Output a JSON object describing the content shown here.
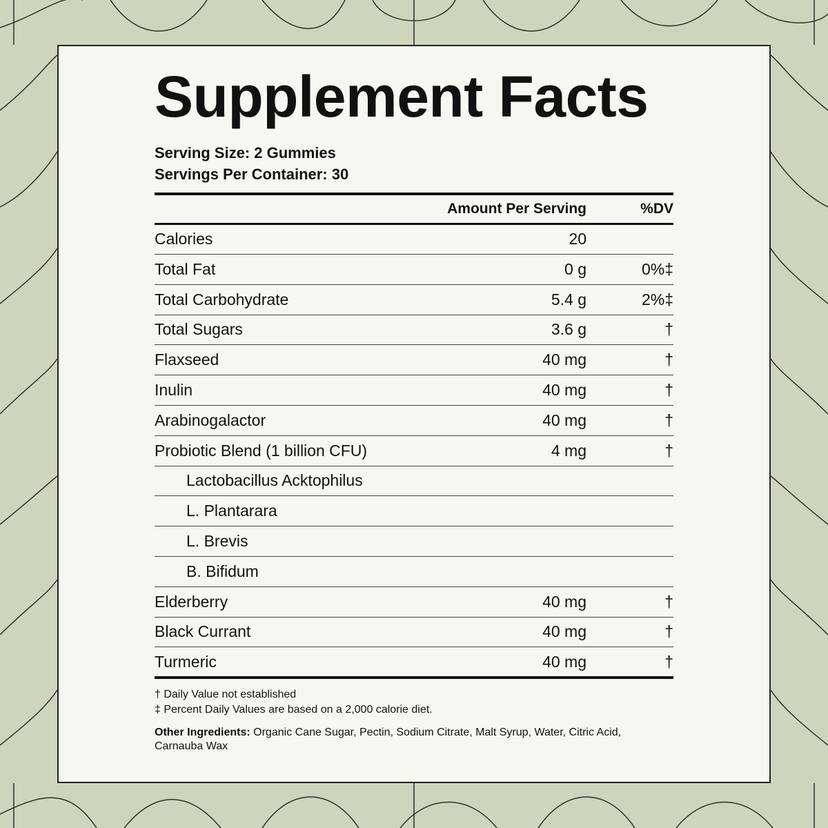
{
  "header": {
    "title": "Supplement Facts",
    "serving_size": "Serving Size: 2 Gummies",
    "servings_per_container": "Servings Per Container: 30"
  },
  "table": {
    "columns": [
      "Amount Per Serving",
      "%DV"
    ],
    "rows": [
      {
        "name": "Calories",
        "amount": "20"
      },
      {
        "name": "Total Fat",
        "amount": "0 g",
        "dv": "0%‡"
      },
      {
        "name": "Total Carbohydrate",
        "amount": "5.4 g",
        "dv": "2%‡"
      },
      {
        "name": "Total Sugars",
        "amount": "3.6 g",
        "dv": "†"
      },
      {
        "name": "Flaxseed",
        "amount": "40 mg",
        "dv": "†"
      },
      {
        "name": "Inulin",
        "amount": "40 mg",
        "dv": "†"
      },
      {
        "name": "Arabinogalactor",
        "amount": "40 mg",
        "dv": "†"
      },
      {
        "name": "Probiotic Blend (1 billion CFU)",
        "amount": "4 mg",
        "dv": "†",
        "components": [
          "Lactobacillus Acktophilus",
          "L. Plantarara",
          "L. Brevis",
          "B. Bifidum"
        ]
      },
      {
        "name": "Elderberry",
        "amount": "40 mg",
        "dv": "†"
      },
      {
        "name": "Black Currant",
        "amount": "40 mg",
        "dv": "†"
      },
      {
        "name": "Turmeric",
        "amount": "40 mg",
        "dv": "†"
      }
    ]
  },
  "footnotes": [
    "† Daily Value not established",
    "‡ Percent Daily Values are based on a 2,000 calorie diet."
  ],
  "other_ingredients": {
    "label": "Other Ingredients:",
    "text": "Organic Cane Sugar, Pectin, Sodium Citrate, Malt Syrup, Water, Citric Acid, Carnauba Wax"
  }
}
